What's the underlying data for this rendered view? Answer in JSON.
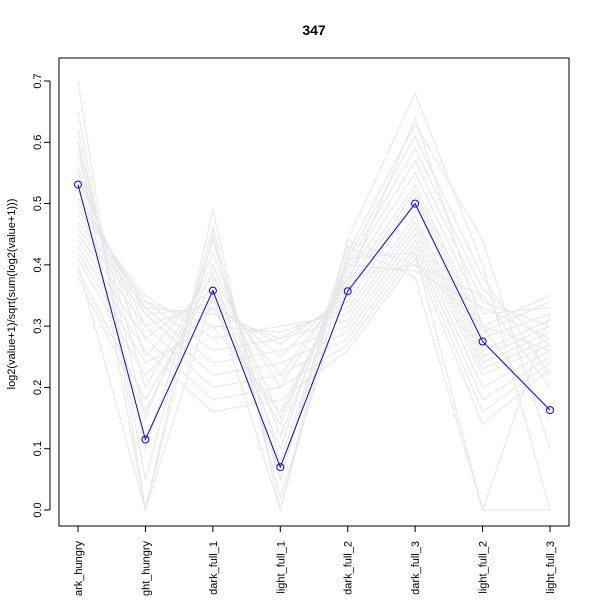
{
  "chart_data": {
    "type": "line",
    "title": "347",
    "xlabel": "",
    "ylabel": "log2(value+1)/sqrt(sum(log2(value+1)))",
    "categories": [
      "dark_hungry",
      "light_hungry",
      "dark_full_1",
      "light_full_1",
      "dark_full_2",
      "dark_full_3",
      "light_full_2",
      "light_full_3"
    ],
    "category_labels": [
      "ark_hungry",
      "ght_hungry",
      "dark_full_1",
      "light_full_1",
      "dark_full_2",
      "dark_full_3",
      "light_full_2",
      "light_full_3"
    ],
    "ylim": [
      0,
      0.7
    ],
    "yticks": [
      0.0,
      0.1,
      0.2,
      0.3,
      0.4,
      0.5,
      0.6,
      0.7
    ],
    "ytick_labels": [
      "0.0",
      "0.1",
      "0.2",
      "0.3",
      "0.4",
      "0.5",
      "0.6",
      "0.7"
    ],
    "grid": false,
    "highlight_series": {
      "color": "#0000ff",
      "values": [
        0.531,
        0.115,
        0.358,
        0.07,
        0.357,
        0.5,
        0.275,
        0.163
      ]
    },
    "background_series_color": "#e6e6e6",
    "background_series": [
      [
        0.7,
        0.0,
        0.49,
        0.0,
        0.44,
        0.68,
        0.4,
        0.0
      ],
      [
        0.65,
        0.05,
        0.46,
        0.05,
        0.42,
        0.63,
        0.44,
        0.1
      ],
      [
        0.62,
        0.1,
        0.44,
        0.08,
        0.41,
        0.61,
        0.38,
        0.22
      ],
      [
        0.6,
        0.15,
        0.42,
        0.12,
        0.4,
        0.59,
        0.36,
        0.27
      ],
      [
        0.58,
        0.2,
        0.4,
        0.15,
        0.39,
        0.57,
        0.34,
        0.3
      ],
      [
        0.56,
        0.25,
        0.38,
        0.2,
        0.38,
        0.55,
        0.32,
        0.33
      ],
      [
        0.55,
        0.28,
        0.36,
        0.22,
        0.37,
        0.53,
        0.3,
        0.35
      ],
      [
        0.54,
        0.3,
        0.34,
        0.25,
        0.36,
        0.52,
        0.29,
        0.34
      ],
      [
        0.52,
        0.32,
        0.33,
        0.27,
        0.35,
        0.51,
        0.28,
        0.32
      ],
      [
        0.51,
        0.33,
        0.32,
        0.28,
        0.34,
        0.5,
        0.26,
        0.31
      ],
      [
        0.5,
        0.34,
        0.3,
        0.29,
        0.33,
        0.48,
        0.25,
        0.3
      ],
      [
        0.49,
        0.35,
        0.28,
        0.3,
        0.32,
        0.47,
        0.24,
        0.29
      ],
      [
        0.48,
        0.34,
        0.26,
        0.28,
        0.31,
        0.46,
        0.23,
        0.28
      ],
      [
        0.47,
        0.33,
        0.24,
        0.26,
        0.3,
        0.45,
        0.22,
        0.27
      ],
      [
        0.46,
        0.32,
        0.22,
        0.24,
        0.29,
        0.44,
        0.2,
        0.26
      ],
      [
        0.45,
        0.3,
        0.2,
        0.22,
        0.28,
        0.43,
        0.18,
        0.25
      ],
      [
        0.44,
        0.28,
        0.18,
        0.2,
        0.27,
        0.42,
        0.16,
        0.24
      ],
      [
        0.43,
        0.26,
        0.16,
        0.18,
        0.26,
        0.41,
        0.14,
        0.23
      ],
      [
        0.42,
        0.24,
        0.3,
        0.16,
        0.38,
        0.4,
        0.3,
        0.26
      ],
      [
        0.41,
        0.22,
        0.33,
        0.14,
        0.4,
        0.39,
        0.33,
        0.28
      ],
      [
        0.4,
        0.0,
        0.35,
        0.0,
        0.41,
        0.42,
        0.0,
        0.32
      ],
      [
        0.39,
        0.18,
        0.37,
        0.1,
        0.43,
        0.38,
        0.0,
        0.0
      ],
      [
        0.38,
        0.16,
        0.39,
        0.05,
        0.44,
        0.4,
        0.35,
        0.2
      ],
      [
        0.6,
        0.0,
        0.45,
        0.02,
        0.37,
        0.64,
        0.3,
        0.15
      ]
    ]
  }
}
